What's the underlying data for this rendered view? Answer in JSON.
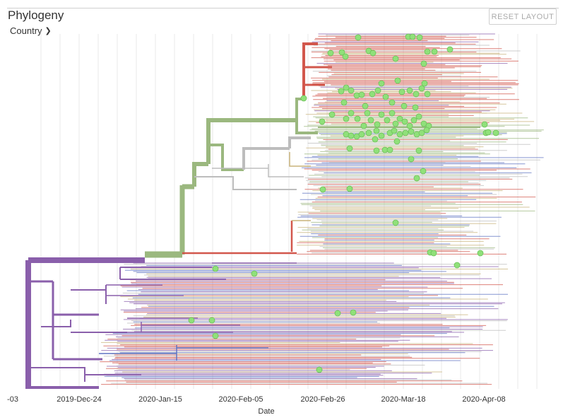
{
  "panel": {
    "title": "Phylogeny",
    "color_by_label": "Country",
    "reset_label": "RESET LAYOUT"
  },
  "colors": {
    "purple": "#8a5fab",
    "green": "#9bb87f",
    "red": "#d2574c",
    "blue": "#5f74c2",
    "tan": "#c9b37a",
    "gray": "#bdbdbd",
    "tip_highlight": "#90e07a"
  },
  "chart_data": {
    "type": "phylogenetic-tree",
    "xlabel": "Date",
    "x_ticks": [
      "-03",
      "2019-Dec-24",
      "2020-Jan-15",
      "2020-Feb-05",
      "2020-Feb-26",
      "2020-Mar-18",
      "2020-Apr-08"
    ],
    "grid": true
  }
}
